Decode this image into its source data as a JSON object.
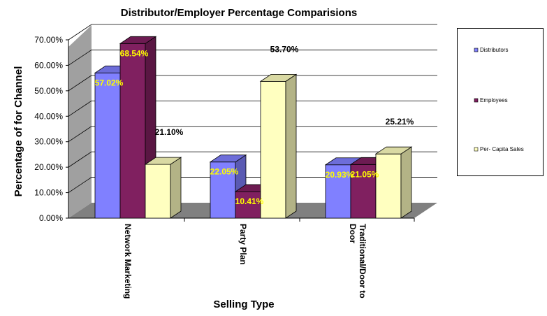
{
  "chart_data": {
    "type": "bar",
    "title": "Distributor/Employer Percentage Comparisions",
    "xlabel": "Selling Type",
    "ylabel": "Percentage of for Channel",
    "categories": [
      "Network Marketing",
      "Party Plan",
      "Traditional/Door to Door"
    ],
    "category_lines": [
      [
        "Network Marketing"
      ],
      [
        "Party Plan"
      ],
      [
        "Traditional/Door to",
        "Door"
      ]
    ],
    "series": [
      {
        "name": "Distributors",
        "values": [
          57.02,
          22.05,
          20.93
        ],
        "labels": [
          "57.02%",
          "22.05%",
          "20.93%"
        ],
        "color": "#8080ff"
      },
      {
        "name": "Employees",
        "values": [
          68.54,
          10.41,
          21.05
        ],
        "labels": [
          "68.54%",
          "10.41%",
          "21.05%"
        ],
        "color": "#802060"
      },
      {
        "name": "Per- Capita Sales",
        "values": [
          21.1,
          53.7,
          25.21
        ],
        "labels": [
          "21.10%",
          "53.70%",
          "25.21%"
        ],
        "color": "#ffffc0"
      }
    ],
    "ylim": [
      0,
      70
    ],
    "yticks": [
      "0.00%",
      "10.00%",
      "20.00%",
      "30.00%",
      "40.00%",
      "50.00%",
      "60.00%",
      "70.00%"
    ],
    "grid": true,
    "legend": "right",
    "three_d": true
  }
}
